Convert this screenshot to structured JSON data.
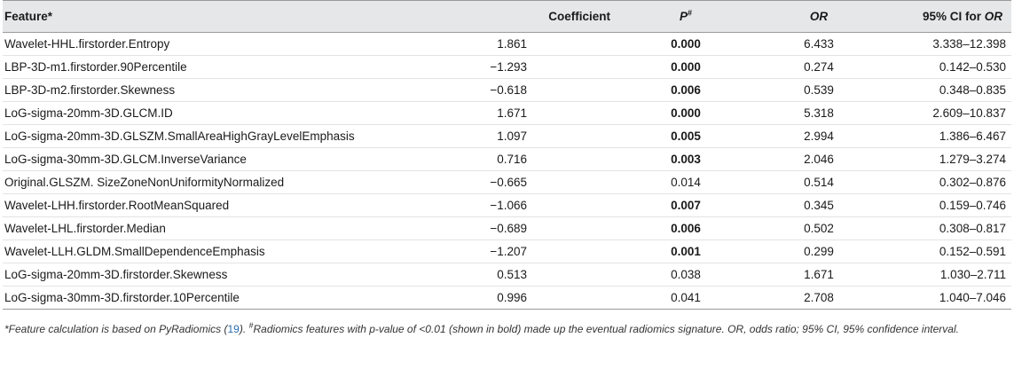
{
  "table": {
    "headers": {
      "feature": "Feature*",
      "coefficient": "Coefficient",
      "p": "P",
      "p_mark": "#",
      "or": "OR",
      "ci_prefix": "95% CI for ",
      "ci_or": "OR"
    },
    "rows": [
      {
        "feature": "Wavelet-HHL.firstorder.Entropy",
        "coefficient": "1.861",
        "p": "0.000",
        "significant": true,
        "or": "6.433",
        "ci": "3.338–12.398"
      },
      {
        "feature": "LBP-3D-m1.firstorder.90Percentile",
        "coefficient": "−1.293",
        "p": "0.000",
        "significant": true,
        "or": "0.274",
        "ci": "0.142–0.530"
      },
      {
        "feature": "LBP-3D-m2.firstorder.Skewness",
        "coefficient": "−0.618",
        "p": "0.006",
        "significant": true,
        "or": "0.539",
        "ci": "0.348–0.835"
      },
      {
        "feature": "LoG-sigma-20mm-3D.GLCM.ID",
        "coefficient": "1.671",
        "p": "0.000",
        "significant": true,
        "or": "5.318",
        "ci": "2.609–10.837"
      },
      {
        "feature": "LoG-sigma-20mm-3D.GLSZM.SmallAreaHighGrayLevelEmphasis",
        "coefficient": "1.097",
        "p": "0.005",
        "significant": true,
        "or": "2.994",
        "ci": "1.386–6.467"
      },
      {
        "feature": "LoG-sigma-30mm-3D.GLCM.InverseVariance",
        "coefficient": "0.716",
        "p": "0.003",
        "significant": true,
        "or": "2.046",
        "ci": "1.279–3.274"
      },
      {
        "feature": "Original.GLSZM. SizeZoneNonUniformityNormalized",
        "coefficient": "−0.665",
        "p": "0.014",
        "significant": false,
        "or": "0.514",
        "ci": "0.302–0.876"
      },
      {
        "feature": "Wavelet-LHH.firstorder.RootMeanSquared",
        "coefficient": "−1.066",
        "p": "0.007",
        "significant": true,
        "or": "0.345",
        "ci": "0.159–0.746"
      },
      {
        "feature": "Wavelet-LHL.firstorder.Median",
        "coefficient": "−0.689",
        "p": "0.006",
        "significant": true,
        "or": "0.502",
        "ci": "0.308–0.817"
      },
      {
        "feature": "Wavelet-LLH.GLDM.SmallDependenceEmphasis",
        "coefficient": "−1.207",
        "p": "0.001",
        "significant": true,
        "or": "0.299",
        "ci": "0.152–0.591"
      },
      {
        "feature": "LoG-sigma-20mm-3D.firstorder.Skewness",
        "coefficient": "0.513",
        "p": "0.038",
        "significant": false,
        "or": "1.671",
        "ci": "1.030–2.711"
      },
      {
        "feature": "LoG-sigma-30mm-3D.firstorder.10Percentile",
        "coefficient": "0.996",
        "p": "0.041",
        "significant": false,
        "or": "2.708",
        "ci": "1.040–7.046"
      }
    ]
  },
  "footnote": {
    "part1": "*Feature calculation is based on PyRadiomics (",
    "citation": "19",
    "part2": "). ",
    "mark": "#",
    "part3": "Radiomics features with p-value of <0.01 (shown in bold) made up the eventual radiomics signature. OR, odds ratio; 95% CI, 95% confidence interval."
  }
}
